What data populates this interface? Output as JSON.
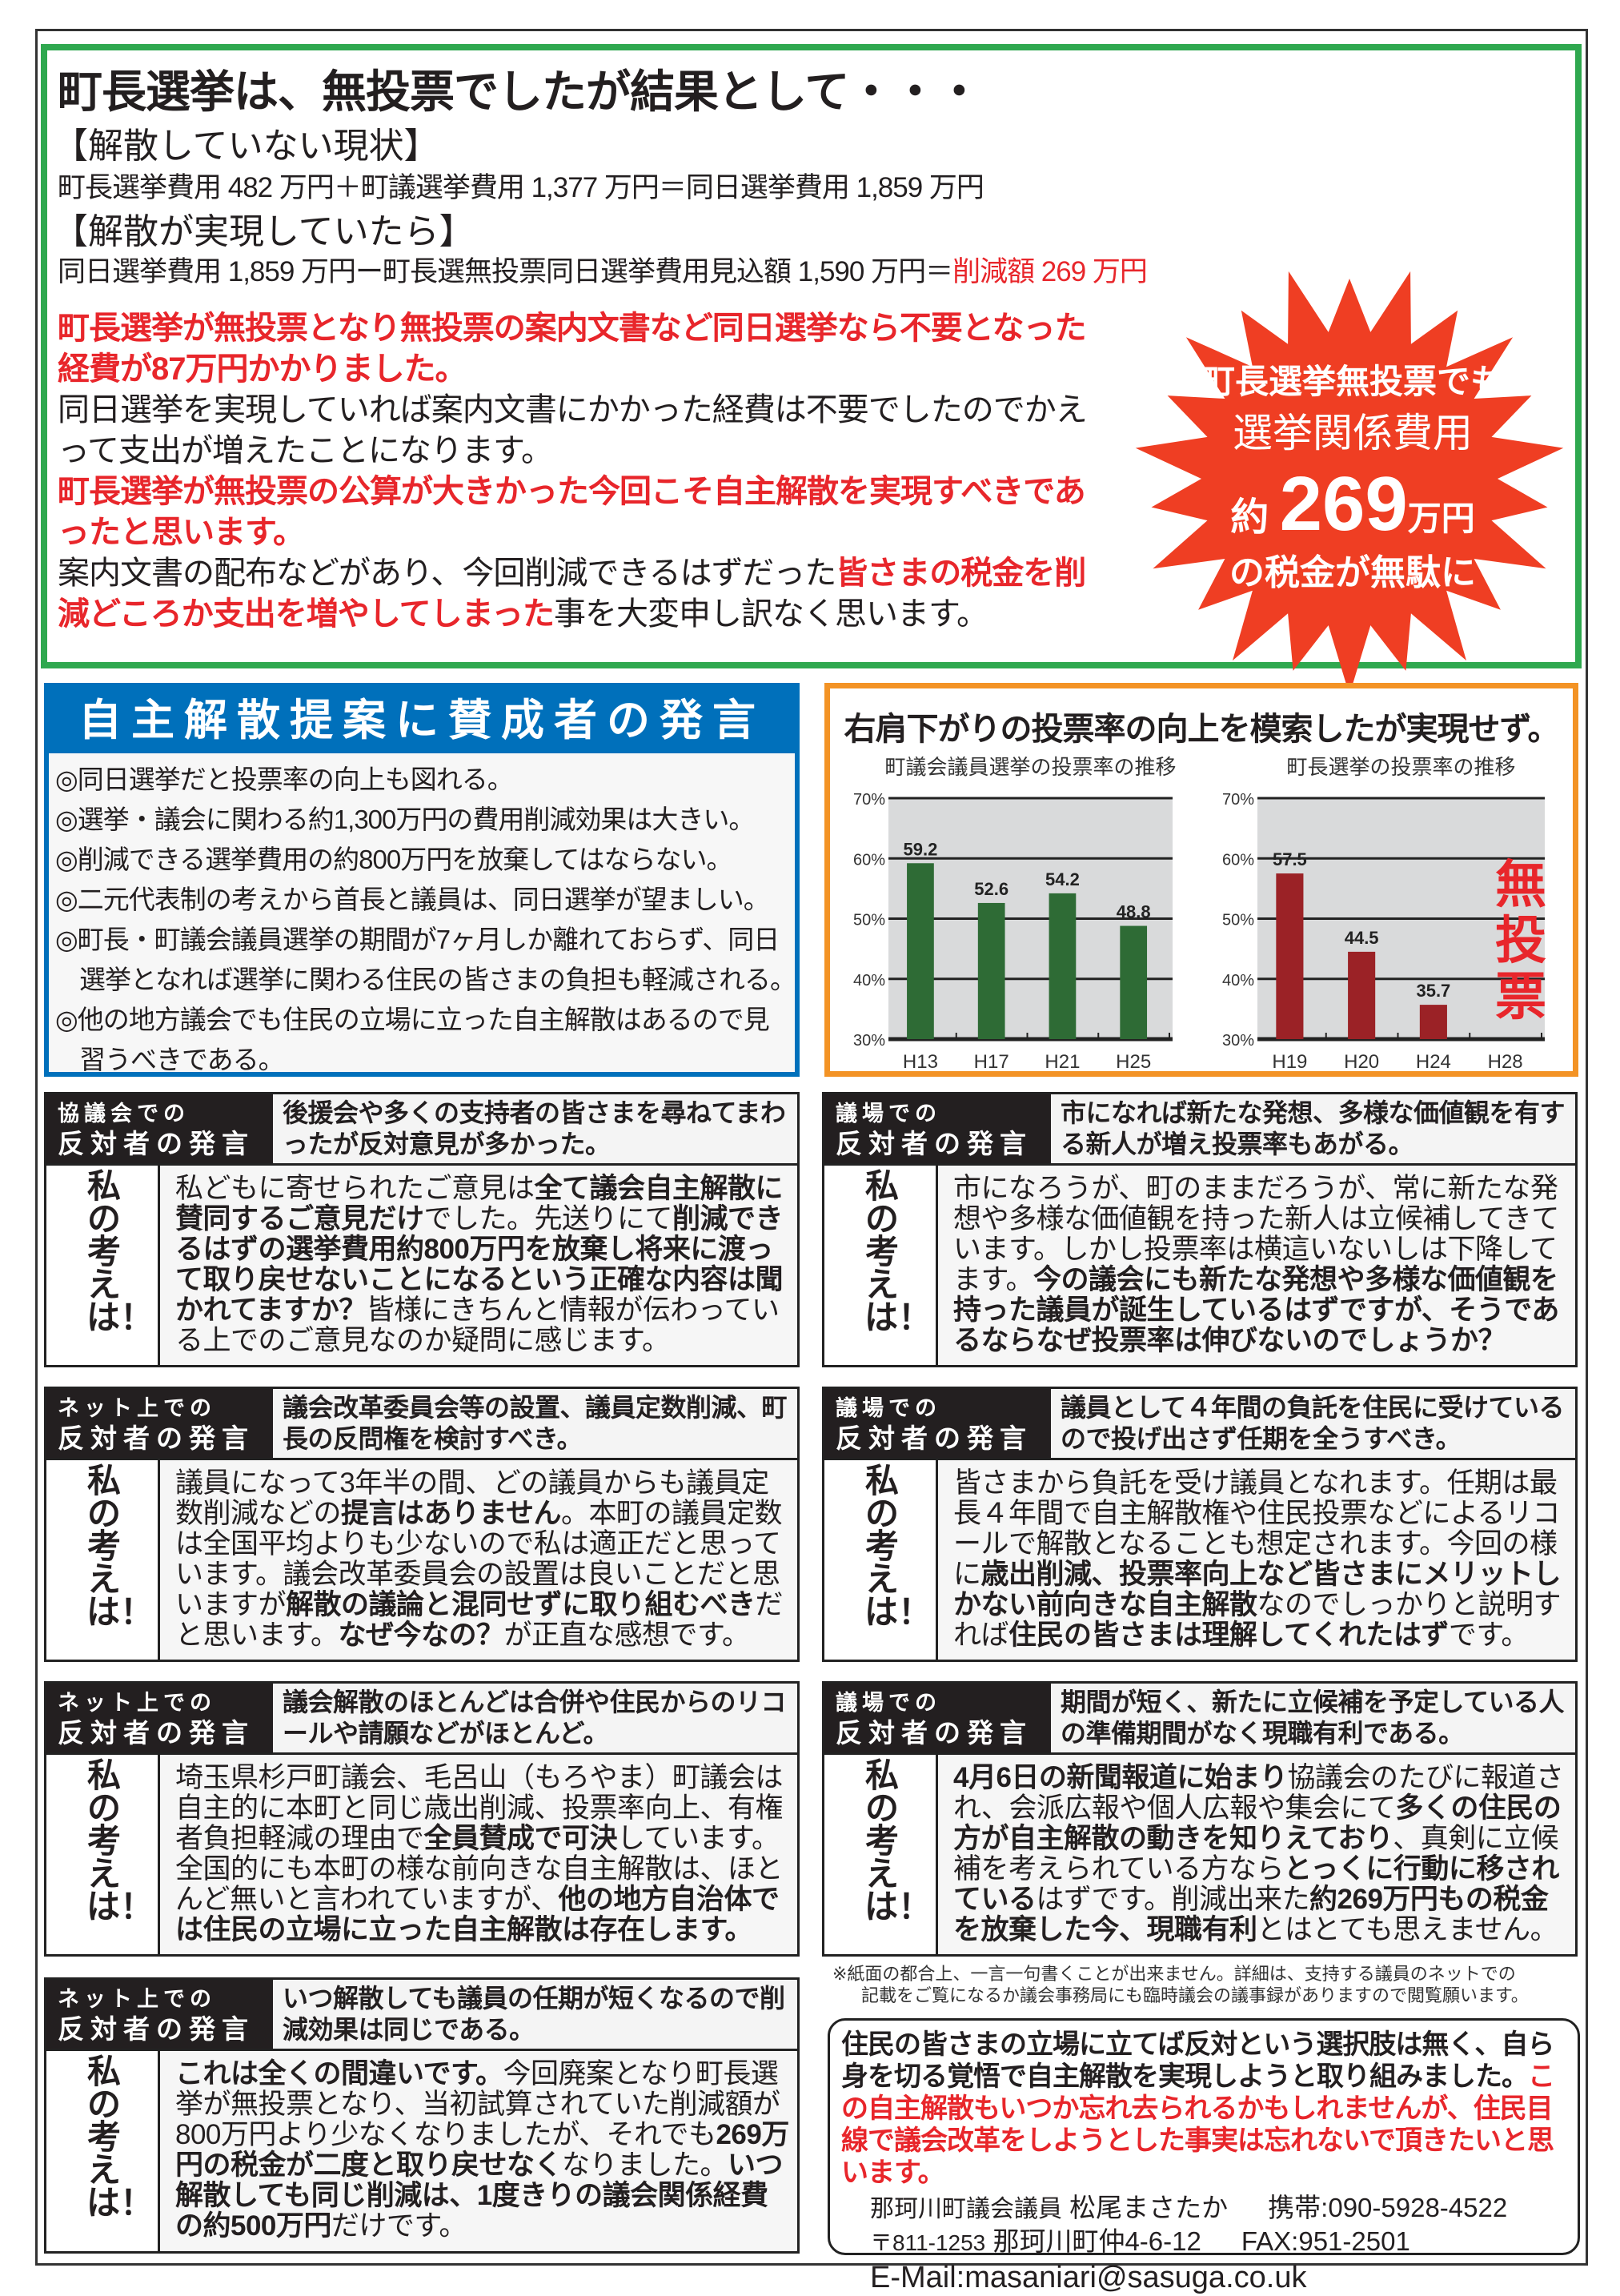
{
  "top": {
    "title": "町長選挙は、無投票でしたが結果として・・・",
    "current_heading": "【解散していない現状】",
    "current_cost": "町長選挙費用 482 万円＋町議選挙費用 1,377 万円＝同日選挙費用 1,859 万円",
    "realized_heading": "【解散が実現していたら】",
    "realized_cost": "同日選挙費用 1,859 万円ー町長選無投票同日選挙費用見込額 1,590 万円＝",
    "realized_saving": "削減額 269 万円",
    "paragraphs": [
      [
        {
          "t": "町長選挙が無投票となり無投票の案内文書など同日選挙なら不要となった経費が87万円かかりました。",
          "s": "rb"
        }
      ],
      [
        {
          "t": "同日選挙を実現していれば案内文書にかかった経費は不要でしたのでかえって支出が増えたことになります。",
          "s": ""
        }
      ],
      [
        {
          "t": "町長選挙が無投票の公算が大きかった今回こそ自主解散を実現すべきであったと思います。",
          "s": "rb"
        }
      ],
      [
        {
          "t": "案内文書の配布などがあり、今回削減できるはずだった",
          "s": ""
        },
        {
          "t": "皆さまの税金を削減どころか支出を増やしてしまった",
          "s": "rb"
        },
        {
          "t": "事を大変申し訳なく思います。",
          "s": ""
        }
      ]
    ],
    "starburst": {
      "line1": "町長選挙無投票でも",
      "line2": "選挙関係費用",
      "prefix": "約",
      "amount": "269",
      "unit": "万円",
      "line4": "の税金が無駄に",
      "color": "#ef3e23"
    }
  },
  "support": {
    "title": "自主解散提案に賛成者の発言",
    "items": [
      "◎同日選挙だと投票率の向上も図れる。",
      "◎選挙・議会に関わる約1,300万円の費用削減効果は大きい。",
      "◎削減できる選挙費用の約800万円を放棄してはならない。",
      "◎二元代表制の考えから首長と議員は、同日選挙が望ましい。",
      "◎町長・町議会議員選挙の期間が7ヶ月しか離れておらず、同日",
      "選挙となれば選挙に関わる住民の皆さまの負担も軽減される。",
      "◎他の地方議会でも住民の立場に立った自主解散はあるので見",
      "習うべきである。"
    ]
  },
  "turnout": {
    "title": "右肩下がりの投票率の向上を模索したが実現せず。"
  },
  "chart_data": [
    {
      "type": "bar",
      "title": "町議会議員選挙の投票率の推移",
      "categories": [
        "H13",
        "H17",
        "H21",
        "H25"
      ],
      "values": [
        59.2,
        52.6,
        54.2,
        48.8
      ],
      "ylim": [
        30,
        70
      ],
      "yticks": [
        "30%",
        "40%",
        "50%",
        "60%",
        "70%"
      ],
      "grid": true,
      "color": "#2e6b35"
    },
    {
      "type": "bar",
      "title": "町長選挙の投票率の推移",
      "categories": [
        "H19",
        "H20",
        "H24",
        "H28"
      ],
      "values": [
        57.5,
        44.5,
        35.7,
        null
      ],
      "ylim": [
        30,
        70
      ],
      "yticks": [
        "30%",
        "40%",
        "50%",
        "60%",
        "70%"
      ],
      "grid": true,
      "color": "#9b2226",
      "annotation": "無投票",
      "annotation_color": "#e8262b"
    }
  ],
  "my_view_label": "私の考えは！",
  "opposition": [
    {
      "l1": "協議会での",
      "l2": "反対者の発言",
      "claim": "後援会や多くの支持者の皆さまを尋ねてまわったが反対意見が多かった。",
      "body": [
        {
          "t": "私どもに寄せられたご意見は",
          "s": ""
        },
        {
          "t": "全て議会自主解散に賛同するご意見だけ",
          "s": "b"
        },
        {
          "t": "でした。先送りにて",
          "s": ""
        },
        {
          "t": "削減できるはずの選挙費用約800万円を放棄し将来に渡って取り戻せないことになるという正確な内容は聞かれてますか？",
          "s": "b"
        },
        {
          "t": "皆様にきちんと情報が伝わっている上でのご意見なのか疑問に感じます。",
          "s": ""
        }
      ]
    },
    {
      "l1": "議場での",
      "l2": "反対者の発言",
      "claim": "市になれば新たな発想、多様な価値観を有する新人が増え投票率もあがる。",
      "body": [
        {
          "t": "市になろうが、町のままだろうが、常に新たな発想や多様な価値観を持った新人は立候補してきています。しかし投票率は横這いないしは下降してます。",
          "s": ""
        },
        {
          "t": "今の議会にも新たな発想や多様な価値観を持った議員が誕生しているはずですが、そうであるならなぜ投票率は伸びないのでしょうか？",
          "s": "b"
        }
      ]
    },
    {
      "l1": "ネット上での",
      "l2": "反対者の発言",
      "claim": "議会改革委員会等の設置、議員定数削減、町長の反問権を検討すべき。",
      "body": [
        {
          "t": "議員になって3年半の間、どの議員からも議員定数削減などの",
          "s": ""
        },
        {
          "t": "提言はありません",
          "s": "b"
        },
        {
          "t": "。本町の議員定数は全国平均よりも少ないので私は適正だと思っています。議会改革委員会の設置は良いことだと思いますが",
          "s": ""
        },
        {
          "t": "解散の議論と混同せずに取り組むべき",
          "s": "b"
        },
        {
          "t": "だと思います。",
          "s": ""
        },
        {
          "t": "なぜ今なの？",
          "s": "b"
        },
        {
          "t": "が正直な感想です。",
          "s": ""
        }
      ]
    },
    {
      "l1": "議場での",
      "l2": "反対者の発言",
      "claim": "議員として４年間の負託を住民に受けているので投げ出さず任期を全うすべき。",
      "body": [
        {
          "t": "皆さまから負託を受け議員となれます。任期は最長４年間で自主解散権や住民投票などによるリコールで解散となることも想定されます。今回の様に",
          "s": ""
        },
        {
          "t": "歳出削減、投票率向上など皆さまにメリットしかない前向きな自主解散",
          "s": "b"
        },
        {
          "t": "なのでしっかりと説明すれば",
          "s": ""
        },
        {
          "t": "住民の皆さまは理解してくれたはず",
          "s": "b"
        },
        {
          "t": "です。",
          "s": ""
        }
      ]
    },
    {
      "l1": "ネット上での",
      "l2": "反対者の発言",
      "claim": "議会解散のほとんどは合併や住民からのリコールや請願などがほとんど。",
      "body": [
        {
          "t": "埼玉県杉戸町議会、毛呂山（もろやま）町議会は自主的に本町と同じ歳出削減、投票率向上、有権者負担軽減の理由で",
          "s": ""
        },
        {
          "t": "全員賛成で可決",
          "s": "b"
        },
        {
          "t": "しています。全国的にも本町の様な前向きな自主解散は、ほとんど無いと言われていますが、",
          "s": ""
        },
        {
          "t": "他の地方自治体では住民の立場に立った自主解散は存在します。",
          "s": "b"
        }
      ]
    },
    {
      "l1": "議場での",
      "l2": "反対者の発言",
      "claim": "期間が短く、新たに立候補を予定している人の準備期間がなく現職有利である。",
      "body": [
        {
          "t": "4月6日の新聞報道に始まり",
          "s": "b"
        },
        {
          "t": "協議会のたびに報道され、会派広報や個人広報や集会にて",
          "s": ""
        },
        {
          "t": "多くの住民の方が自主解散の動きを知りえており",
          "s": "b"
        },
        {
          "t": "、真剣に立候補を考えられている方なら",
          "s": ""
        },
        {
          "t": "とっくに行動に移されている",
          "s": "b"
        },
        {
          "t": "はずです。削減出来た",
          "s": ""
        },
        {
          "t": "約269万円もの税金を放棄した今、現職有利",
          "s": "b"
        },
        {
          "t": "とはとても思えません。",
          "s": ""
        }
      ]
    },
    {
      "l1": "ネット上での",
      "l2": "反対者の発言",
      "claim": "いつ解散しても議員の任期が短くなるので削減効果は同じである。",
      "body": [
        {
          "t": "これは全くの間違いです。",
          "s": "b"
        },
        {
          "t": "今回廃案となり町長選挙が無投票となり、当初試算されていた削減額が800万円より少なくなりましたが、それでも",
          "s": ""
        },
        {
          "t": "269万円の税金が二度と取り戻せなく",
          "s": "b"
        },
        {
          "t": "なりました。",
          "s": ""
        },
        {
          "t": "いつ解散しても同じ削減は、1度きりの議会関係経費の約500万円",
          "s": "b"
        },
        {
          "t": "だけです。",
          "s": ""
        }
      ]
    }
  ],
  "note": [
    "※紙面の都合上、一言一句書くことが出来ません。詳細は、支持する議員のネットでの",
    "記載をご覧になるか議会事務局にも臨時議会の議事録がありますので閲覧願います。"
  ],
  "contact": {
    "message": [
      {
        "t": "住民の皆さまの立場に立てば反対という選択肢は無く、自ら身を切る覚悟で自主解散を実現しようと取り組みました。",
        "s": ""
      },
      {
        "t": "この自主解散もいつか忘れ去られるかもしれませんが、住民目線で議会改革をしようとした事実は忘れないで頂きたいと思います。",
        "s": "r"
      }
    ],
    "role": "那珂川町議会議員",
    "name": "松尾まさたか",
    "mobile": "携帯:090-5928-4522",
    "postal": "〒811-1253",
    "address": "那珂川町仲4-6-12",
    "fax": "FAX:951-2501",
    "email": "E-Mail:masaniari@sasuga.co.uk"
  }
}
